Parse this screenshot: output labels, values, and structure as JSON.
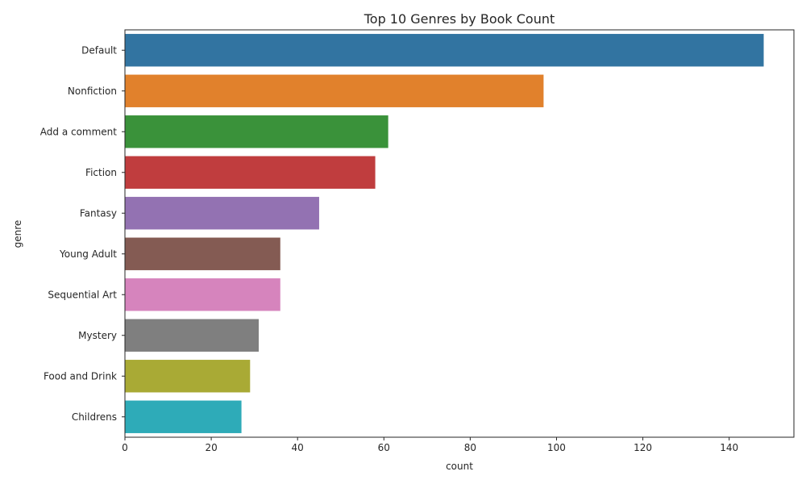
{
  "chart_data": {
    "type": "bar",
    "orientation": "horizontal",
    "title": "Top 10 Genres by Book Count",
    "xlabel": "count",
    "ylabel": "genre",
    "categories": [
      "Default",
      "Nonfiction",
      "Add a comment",
      "Fiction",
      "Fantasy",
      "Young Adult",
      "Sequential Art",
      "Mystery",
      "Food and Drink",
      "Childrens"
    ],
    "values": [
      148,
      97,
      61,
      58,
      45,
      36,
      36,
      31,
      29,
      27
    ],
    "colors": [
      "#3274a1",
      "#e1812c",
      "#3a923a",
      "#c03d3e",
      "#9372b2",
      "#845b53",
      "#d684bd",
      "#7f7f7f",
      "#a9aa35",
      "#2eabb8"
    ],
    "xlim": [
      0,
      155
    ],
    "xticks": [
      "0",
      "20",
      "40",
      "60",
      "80",
      "100",
      "120",
      "140"
    ],
    "grid": false,
    "legend": "none"
  }
}
